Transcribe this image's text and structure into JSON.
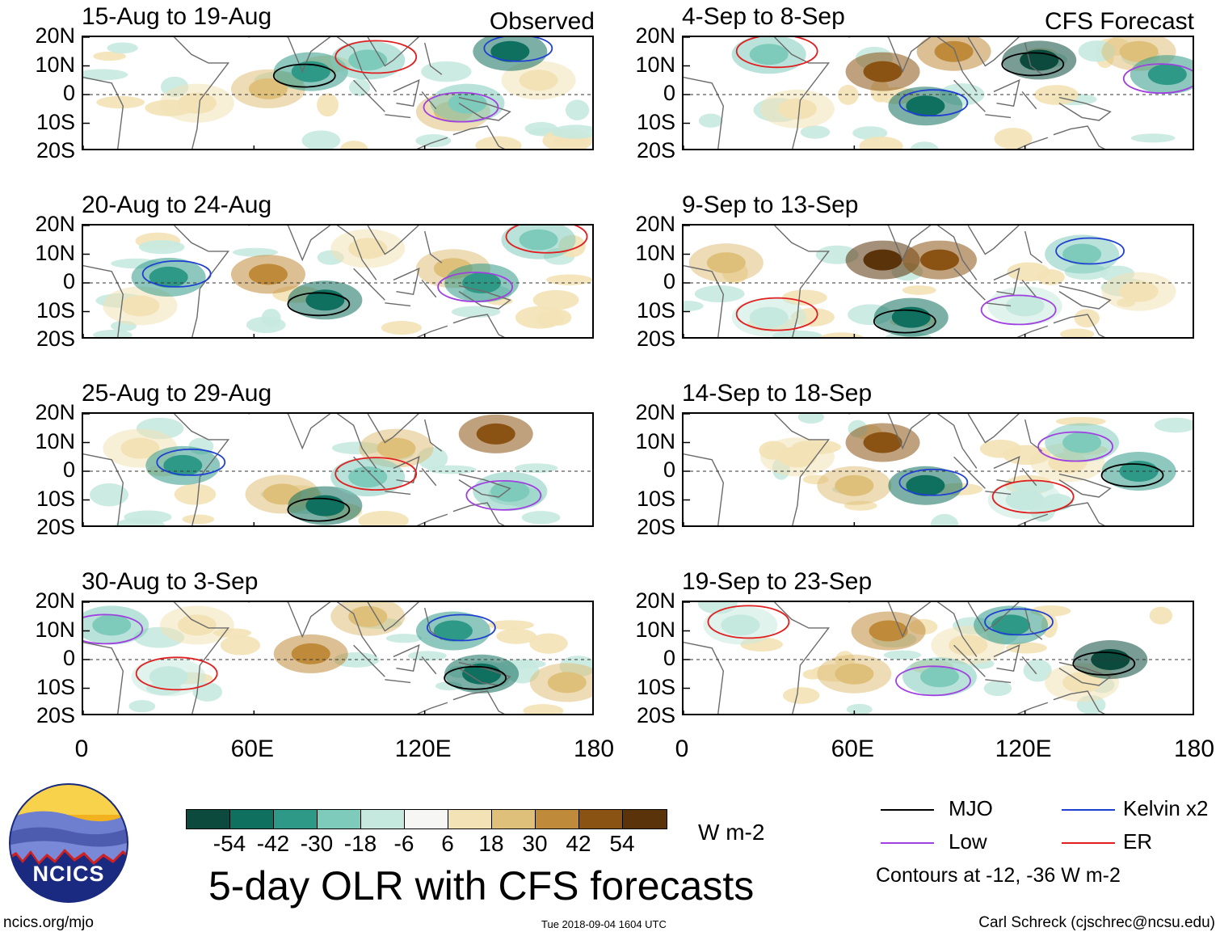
{
  "chart_data": {
    "type": "heatmap",
    "title": "5-day OLR with CFS forecasts",
    "variable": "5-day OLR anomaly",
    "units": "W m-2",
    "colorbar_ticks": [
      "-54",
      "-42",
      "-30",
      "-18",
      "-6",
      "6",
      "18",
      "30",
      "42",
      "54"
    ],
    "colorbar_colors": [
      "#0b4a3d",
      "#10705f",
      "#2f9988",
      "#7fcbbb",
      "#c6e9df",
      "#f6f6f4",
      "#f3e2b6",
      "#dfc07a",
      "#bf8a3a",
      "#8a5314",
      "#5a330b"
    ],
    "x_ticks": [
      "0",
      "60E",
      "120E",
      "180"
    ],
    "y_ticks": [
      "20N",
      "10N",
      "0",
      "10S",
      "20S"
    ],
    "xlim": [
      0,
      180
    ],
    "ylim": [
      -20,
      20
    ],
    "column_labels": [
      "Observed",
      "CFS Forecast"
    ],
    "panels": [
      {
        "title": "15-Aug to 19-Aug",
        "source": "Observed",
        "dry": [
          [
            65,
            2,
            "#dfc07a"
          ],
          [
            130,
            -6,
            "#dfc07a"
          ],
          [
            40,
            -3,
            "#f3e2b6"
          ],
          [
            160,
            5,
            "#f3e2b6"
          ]
        ],
        "wet": [
          [
            80,
            8,
            "#2f9988"
          ],
          [
            150,
            15,
            "#10705f"
          ],
          [
            135,
            -3,
            "#7fcbbb"
          ],
          [
            100,
            12,
            "#7fcbbb"
          ]
        ]
      },
      {
        "title": "20-Aug to 24-Aug",
        "source": "Observed",
        "dry": [
          [
            65,
            3,
            "#bf8a3a"
          ],
          [
            130,
            5,
            "#dfc07a"
          ],
          [
            100,
            12,
            "#f3e2b6"
          ],
          [
            20,
            -8,
            "#f3e2b6"
          ]
        ],
        "wet": [
          [
            85,
            -6,
            "#10705f"
          ],
          [
            30,
            2,
            "#2f9988"
          ],
          [
            140,
            0,
            "#2f9988"
          ],
          [
            160,
            15,
            "#7fcbbb"
          ]
        ]
      },
      {
        "title": "25-Aug to 29-Aug",
        "source": "Observed",
        "dry": [
          [
            145,
            13,
            "#8a5314"
          ],
          [
            110,
            8,
            "#dfc07a"
          ],
          [
            70,
            -8,
            "#dfc07a"
          ],
          [
            20,
            8,
            "#f3e2b6"
          ]
        ],
        "wet": [
          [
            85,
            -12,
            "#10705f"
          ],
          [
            35,
            2,
            "#2f9988"
          ],
          [
            150,
            -7,
            "#7fcbbb"
          ],
          [
            100,
            -2,
            "#7fcbbb"
          ]
        ]
      },
      {
        "title": "30-Aug to 3-Sep",
        "source": "Observed",
        "dry": [
          [
            80,
            2,
            "#bf8a3a"
          ],
          [
            100,
            15,
            "#dfc07a"
          ],
          [
            170,
            -8,
            "#dfc07a"
          ],
          [
            40,
            12,
            "#f3e2b6"
          ]
        ],
        "wet": [
          [
            140,
            -5,
            "#10705f"
          ],
          [
            130,
            10,
            "#2f9988"
          ],
          [
            10,
            12,
            "#7fcbbb"
          ],
          [
            30,
            -6,
            "#c6e9df"
          ]
        ]
      },
      {
        "title": "4-Sep to 8-Sep",
        "source": "CFS Forecast",
        "dry": [
          [
            70,
            8,
            "#8a5314"
          ],
          [
            95,
            15,
            "#bf8a3a"
          ],
          [
            160,
            15,
            "#dfc07a"
          ],
          [
            40,
            -5,
            "#f3e2b6"
          ]
        ],
        "wet": [
          [
            125,
            12,
            "#0b4a3d"
          ],
          [
            85,
            -4,
            "#10705f"
          ],
          [
            170,
            7,
            "#2f9988"
          ],
          [
            30,
            14,
            "#7fcbbb"
          ]
        ]
      },
      {
        "title": "9-Sep to 13-Sep",
        "source": "CFS Forecast",
        "dry": [
          [
            70,
            8,
            "#5a330b"
          ],
          [
            90,
            8,
            "#8a5314"
          ],
          [
            15,
            7,
            "#dfc07a"
          ],
          [
            160,
            -3,
            "#f3e2b6"
          ]
        ],
        "wet": [
          [
            80,
            -12,
            "#10705f"
          ],
          [
            140,
            10,
            "#7fcbbb"
          ],
          [
            120,
            -8,
            "#c6e9df"
          ],
          [
            30,
            -12,
            "#c6e9df"
          ]
        ]
      },
      {
        "title": "14-Sep to 18-Sep",
        "source": "CFS Forecast",
        "dry": [
          [
            70,
            10,
            "#8a5314"
          ],
          [
            60,
            -5,
            "#dfc07a"
          ],
          [
            135,
            3,
            "#f3e2b6"
          ],
          [
            40,
            5,
            "#f3e2b6"
          ]
        ],
        "wet": [
          [
            160,
            0,
            "#2f9988"
          ],
          [
            85,
            -5,
            "#10705f"
          ],
          [
            140,
            10,
            "#7fcbbb"
          ],
          [
            120,
            -10,
            "#c6e9df"
          ]
        ]
      },
      {
        "title": "19-Sep to 23-Sep",
        "source": "CFS Forecast",
        "dry": [
          [
            72,
            10,
            "#bf8a3a"
          ],
          [
            60,
            -5,
            "#dfc07a"
          ],
          [
            100,
            5,
            "#f3e2b6"
          ],
          [
            140,
            -8,
            "#f3e2b6"
          ]
        ],
        "wet": [
          [
            150,
            0,
            "#0b4a3d"
          ],
          [
            115,
            12,
            "#2f9988"
          ],
          [
            90,
            -6,
            "#7fcbbb"
          ],
          [
            20,
            12,
            "#c6e9df"
          ]
        ]
      }
    ],
    "legend": [
      {
        "name": "MJO",
        "color": "#000000"
      },
      {
        "name": "Kelvin x2",
        "color": "#1f3fd0"
      },
      {
        "name": "Low",
        "color": "#a040e0"
      },
      {
        "name": "ER",
        "color": "#e02020"
      }
    ],
    "contour_note": "Contours at -12, -36 W m-2"
  },
  "branding": {
    "logo_text": "NCICS"
  },
  "footer": {
    "website": "ncics.org/mjo",
    "timestamp": "Tue 2018-09-04 1604 UTC",
    "author": "Carl Schreck (cjschrec@ncsu.edu)"
  }
}
